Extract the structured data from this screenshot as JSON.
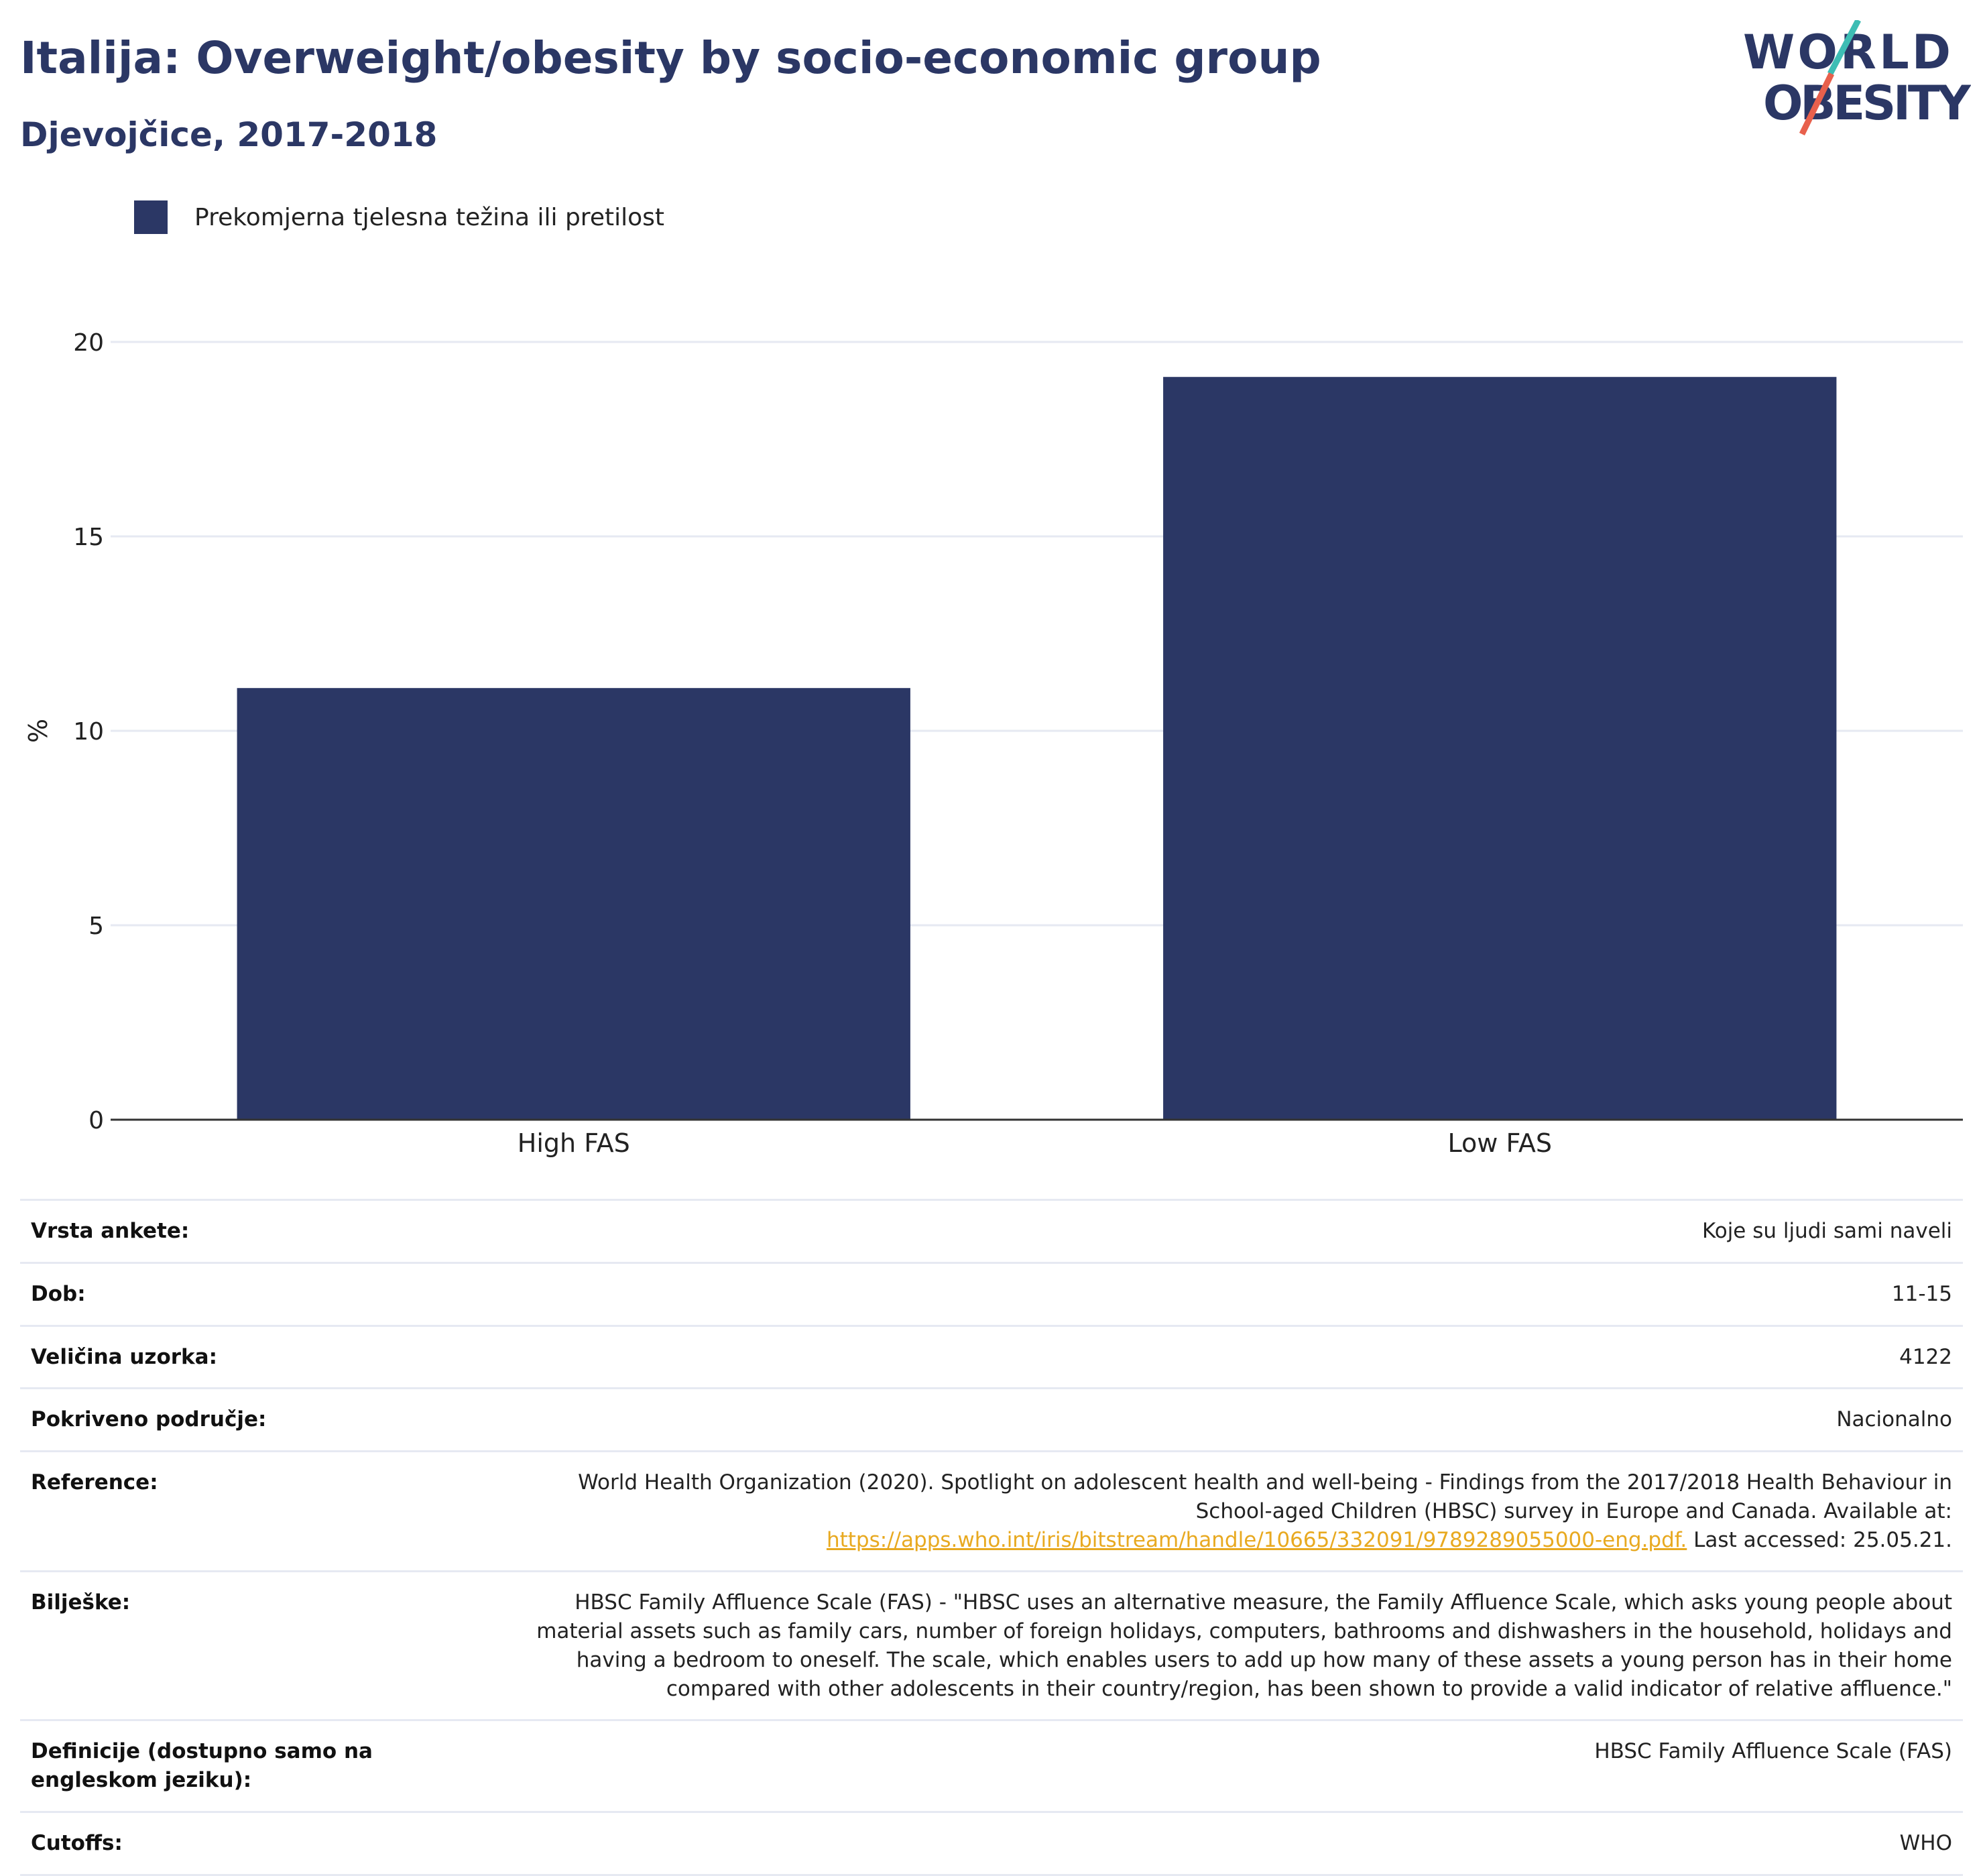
{
  "header": {
    "title": "Italija: Overweight/obesity by socio-economic group",
    "subtitle": "Djevojčice, 2017-2018"
  },
  "logo": {
    "line1": "WORLD",
    "line2": "OBESITY"
  },
  "colors": {
    "bar": "#2b3765",
    "title": "#2b3765",
    "link": "#e8a920",
    "grid": "#e6e9f2",
    "logo_red": "#e8604c",
    "logo_teal": "#3dbdb4"
  },
  "chart_data": {
    "type": "bar",
    "categories": [
      "High FAS",
      "Low FAS"
    ],
    "series": [
      {
        "name": "Prekomjerna tjelesna težina ili pretilost",
        "values": [
          11.1,
          19.1
        ]
      }
    ],
    "ylabel": "%",
    "xlabel": "",
    "ylim": [
      0,
      20
    ],
    "yticks": [
      0,
      5,
      10,
      15,
      20
    ],
    "grid": true,
    "legend": "top-left"
  },
  "meta": {
    "survey_type": {
      "label": "Vrsta ankete:",
      "value": "Koje su ljudi sami naveli"
    },
    "age": {
      "label": "Dob:",
      "value": "11-15"
    },
    "sample": {
      "label": "Veličina uzorka:",
      "value": "4122"
    },
    "area": {
      "label": "Pokriveno područje:",
      "value": "Nacionalno"
    },
    "reference": {
      "label": "Reference:",
      "text": "World Health Organization (2020). Spotlight on adolescent health and well-being - Findings from the 2017/2018 Health Behaviour in School-aged Children (HBSC) survey in Europe and Canada. Available at:",
      "link": "https://apps.who.int/iris/bitstream/handle/10665/332091/9789289055000-eng.pdf.",
      "suffix": "Last accessed: 25.05.21."
    },
    "notes": {
      "label": "Bilješke:",
      "value": "HBSC Family Affluence Scale (FAS) - \"HBSC uses an alternative measure, the Family Affluence Scale, which asks young people about material assets such as family cars, number of foreign holidays, computers, bathrooms and dishwashers in the household, holidays and having a bedroom to oneself. The scale, which enables users to add up how many of these assets a young person has in their home compared with other adolescents in their country/region, has been shown to provide a valid indicator of relative affluence.\""
    },
    "definitions": {
      "label": "Definicije (dostupno samo na engleskom jeziku):",
      "value": "HBSC Family Affluence Scale (FAS)"
    },
    "cutoffs": {
      "label": "Cutoffs:",
      "value": "WHO"
    }
  }
}
